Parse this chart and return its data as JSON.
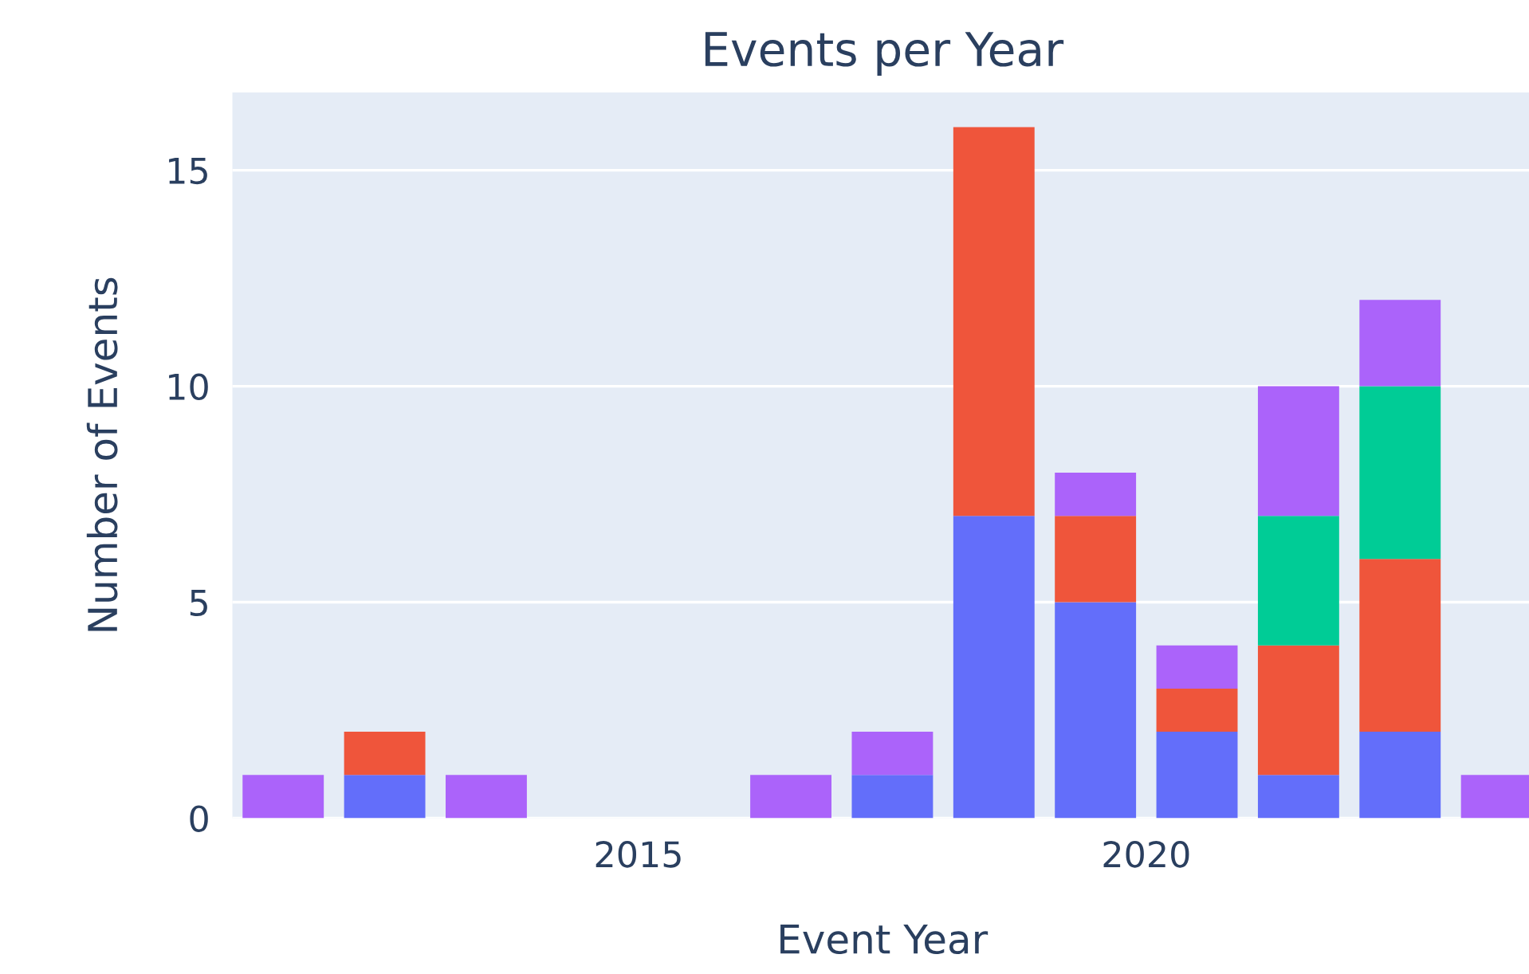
{
  "chart_data": {
    "type": "bar",
    "title": "Events per Year",
    "xlabel": "Event Year",
    "ylabel": "Number of Events",
    "x": [
      2011.5,
      2012.5,
      2013.5,
      2014.5,
      2015.5,
      2016.5,
      2017.5,
      2018.5,
      2019.5,
      2020.5,
      2021.5,
      2022.5,
      2023.5
    ],
    "stacked": true,
    "series": [
      {
        "color": "#636efa",
        "values": [
          null,
          1,
          null,
          null,
          null,
          null,
          1,
          7,
          5,
          2,
          1,
          2,
          null
        ]
      },
      {
        "color": "#ef553b",
        "values": [
          null,
          1,
          null,
          null,
          null,
          null,
          null,
          9,
          2,
          1,
          3,
          4,
          null
        ]
      },
      {
        "color": "#00cc96",
        "values": [
          null,
          null,
          null,
          null,
          null,
          null,
          null,
          null,
          null,
          null,
          3,
          4,
          null
        ]
      },
      {
        "color": "#ab63fa",
        "values": [
          1,
          null,
          1,
          null,
          null,
          1,
          1,
          null,
          1,
          1,
          3,
          2,
          1
        ]
      }
    ],
    "xlim": [
      2011,
      2023.8
    ],
    "xticks": [
      2015,
      2020
    ],
    "ylim": [
      0,
      16.8
    ],
    "yticks": [
      0,
      5,
      10,
      15
    ],
    "grid": "y",
    "legend": false
  }
}
